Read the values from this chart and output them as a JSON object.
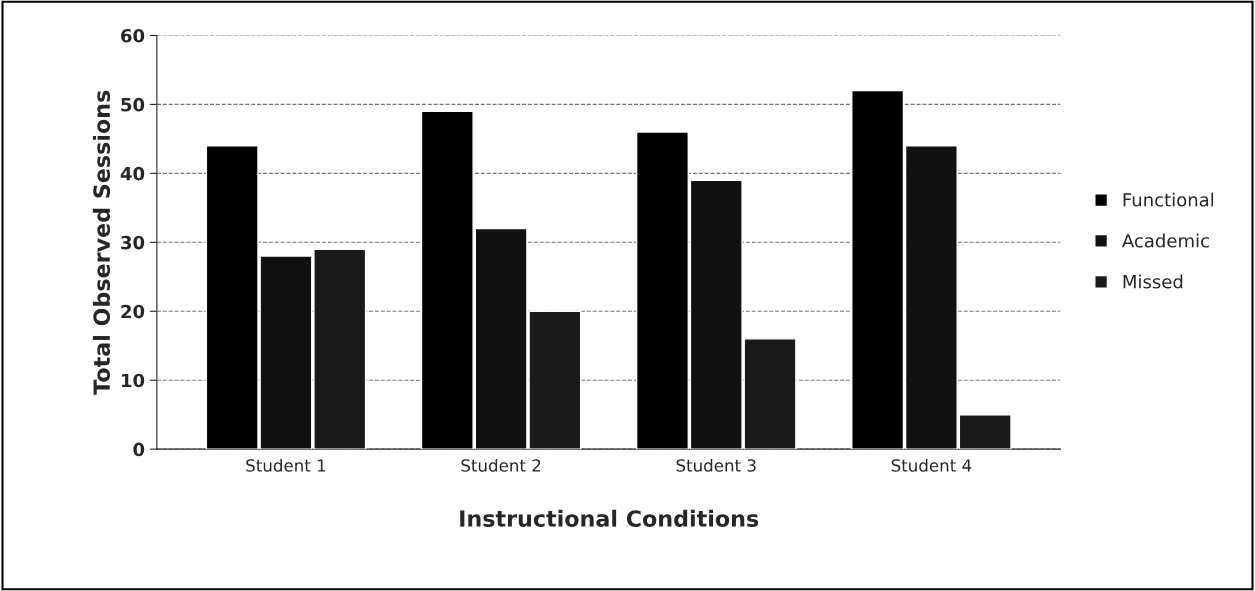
{
  "chart_data": {
    "type": "bar",
    "xlabel": "Instructional Conditions",
    "ylabel": "Total Observed Sessions",
    "categories": [
      "Student 1",
      "Student 2",
      "Student 3",
      "Student 4"
    ],
    "series": [
      {
        "name": "Functional",
        "color": "#000000",
        "values": [
          44,
          49,
          46,
          52
        ]
      },
      {
        "name": "Academic",
        "color": "#111111",
        "values": [
          28,
          32,
          39,
          44
        ]
      },
      {
        "name": "Missed",
        "color": "#1a1a1a",
        "values": [
          29,
          20,
          16,
          5
        ]
      }
    ],
    "ylim": [
      0,
      60
    ],
    "yticks": [
      0,
      10,
      20,
      30,
      40,
      50,
      60
    ],
    "grid": "y",
    "legend": "right"
  }
}
